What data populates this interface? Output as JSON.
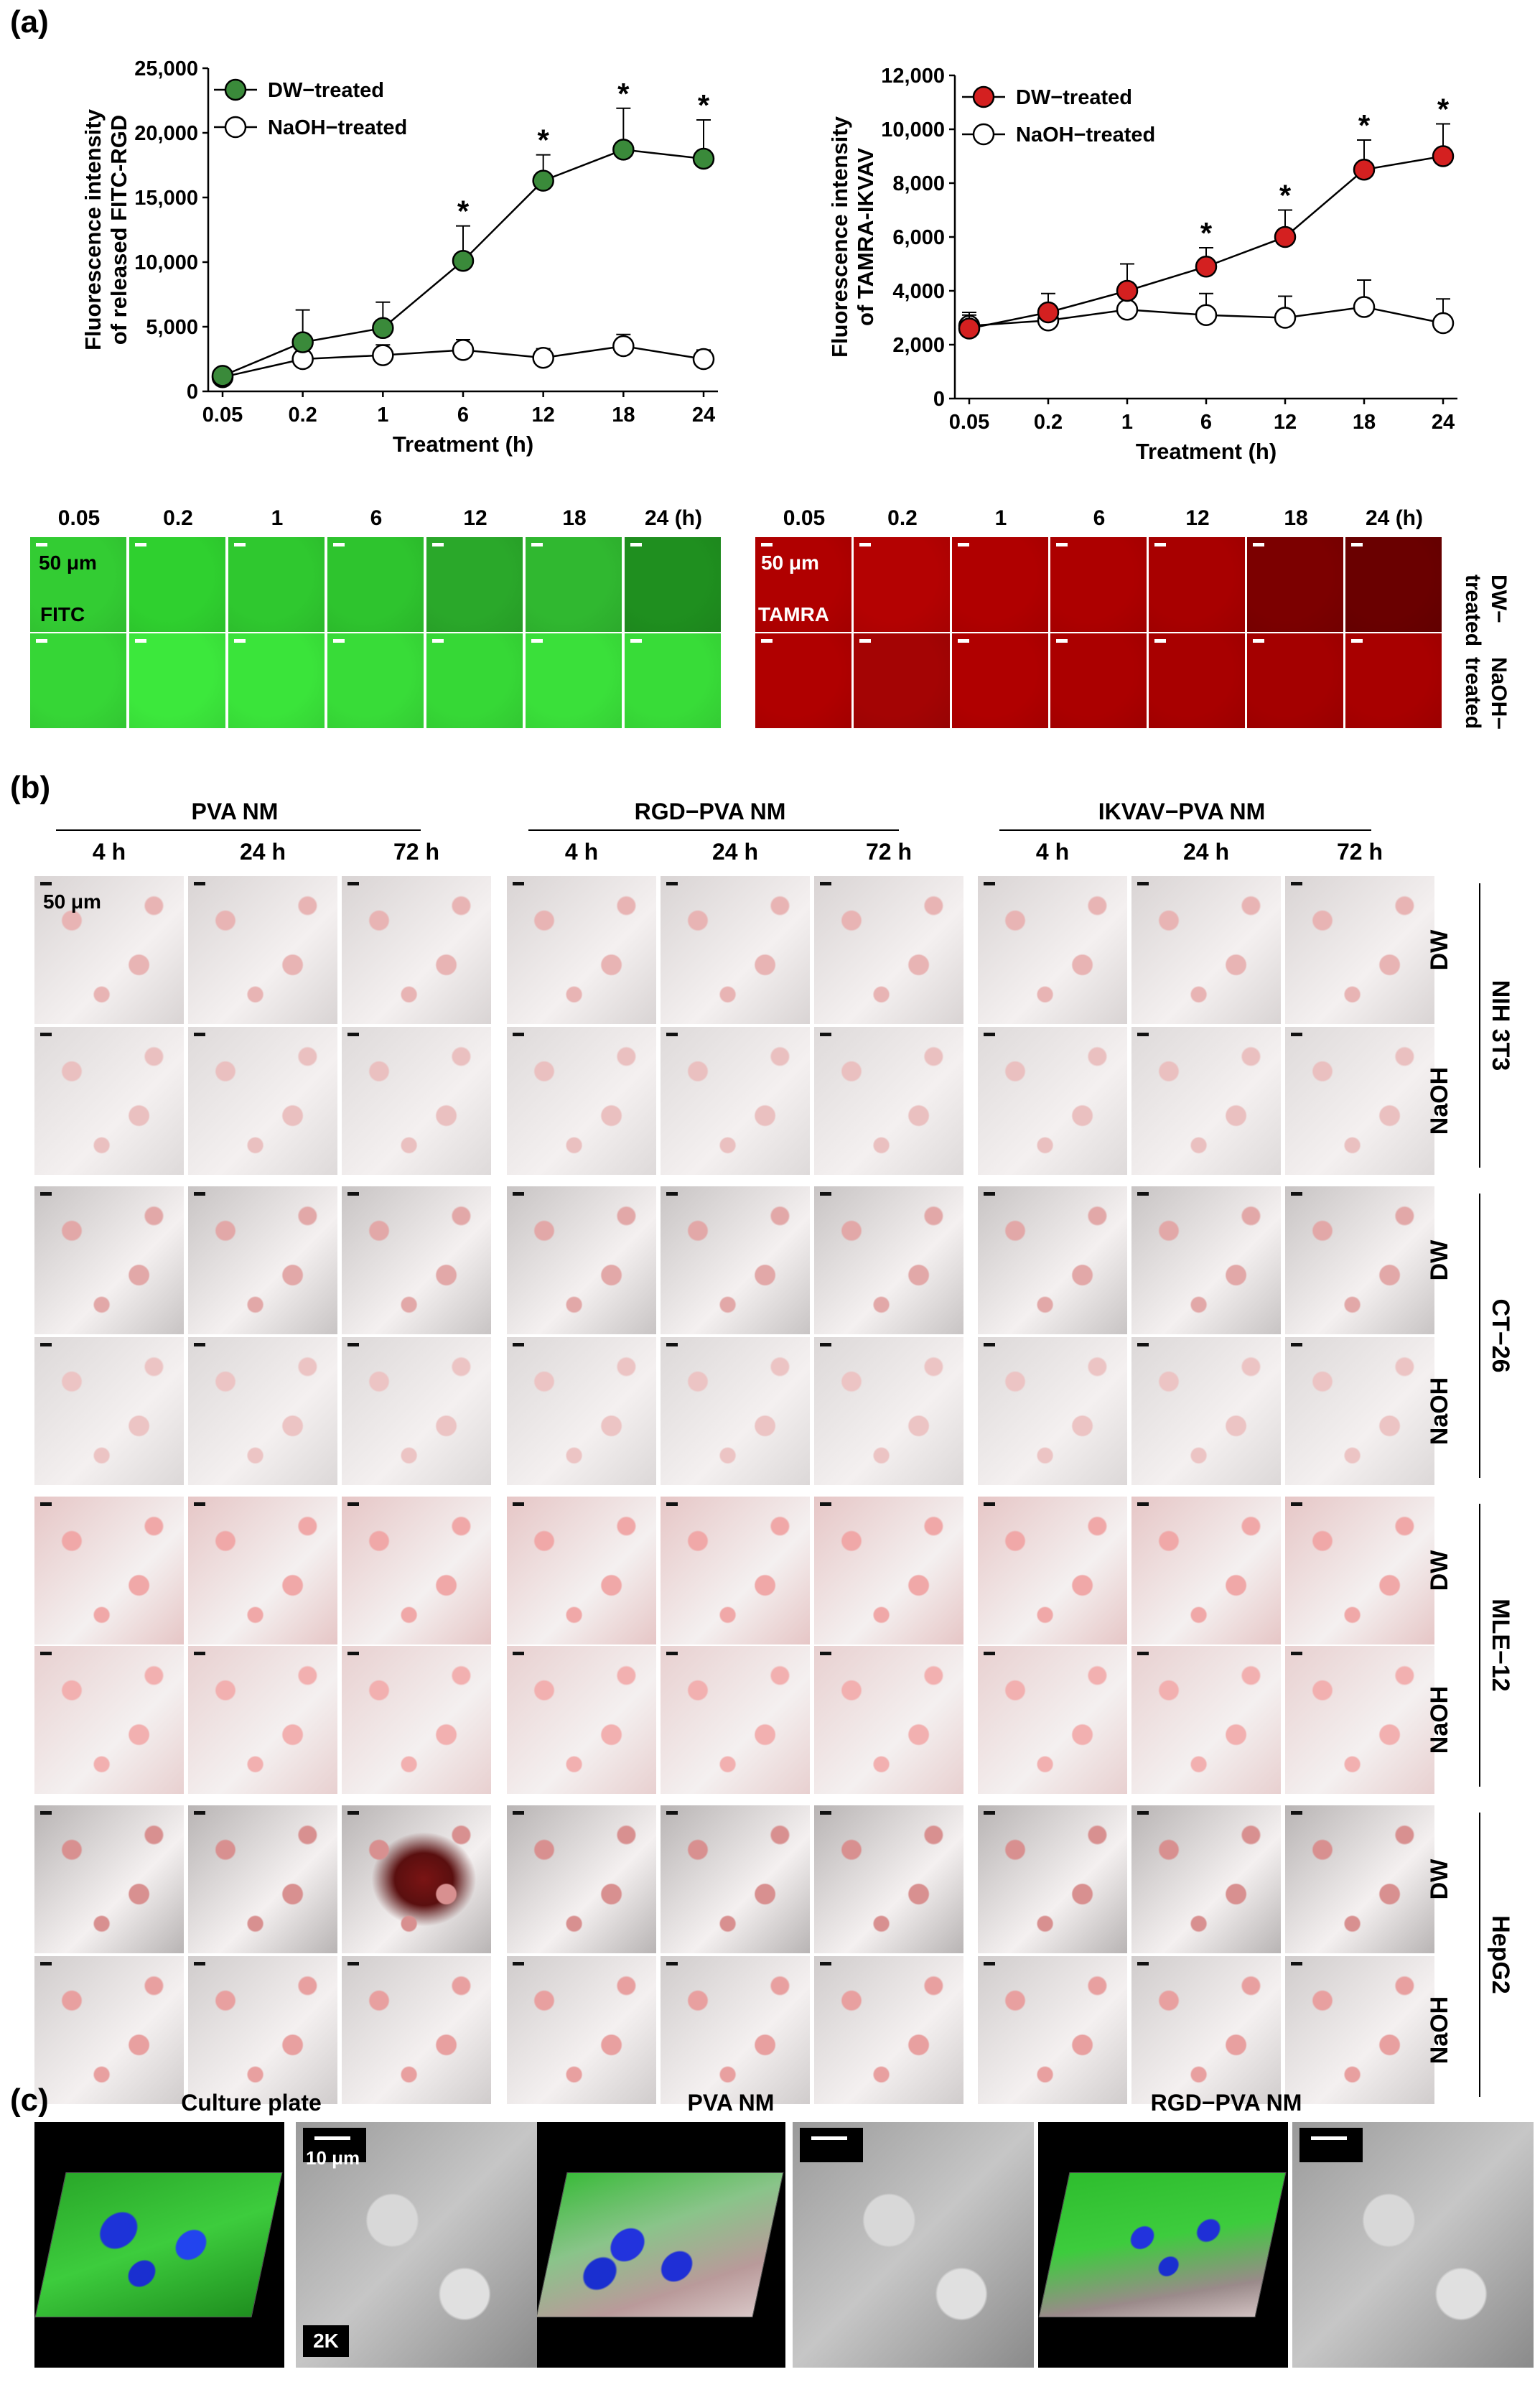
{
  "panels": {
    "a": "(a)",
    "b": "(b)",
    "c": "(c)"
  },
  "chart_data": [
    {
      "type": "line",
      "x": [
        "0.05",
        "0.2",
        "1",
        "6",
        "12",
        "18",
        "24"
      ],
      "xlabel": "Treatment (h)",
      "ylabel_line1": "Fluorescence intensity",
      "ylabel_line2": "of released FITC-RGD",
      "ylim": [
        0,
        25000
      ],
      "yticks": [
        "0",
        "5,000",
        "10,000",
        "15,000",
        "20,000",
        "25,000"
      ],
      "ytick_values": [
        0,
        5000,
        10000,
        15000,
        20000,
        25000
      ],
      "series": [
        {
          "name": "DW−treated",
          "color": "#3a8a3a",
          "values": [
            1200,
            3800,
            4900,
            10100,
            16300,
            18700,
            18000
          ],
          "errors": [
            400,
            2500,
            2000,
            2700,
            2000,
            3200,
            3000
          ]
        },
        {
          "name": "NaOH−treated",
          "color": "#ffffff",
          "values": [
            1100,
            2500,
            2800,
            3200,
            2600,
            3500,
            2500
          ],
          "errors": [
            300,
            600,
            800,
            800,
            700,
            900,
            700
          ]
        }
      ],
      "significance": [
        "",
        "",
        "",
        "*",
        "*",
        "*",
        "*"
      ]
    },
    {
      "type": "line",
      "x": [
        "0.05",
        "0.2",
        "1",
        "6",
        "12",
        "18",
        "24"
      ],
      "xlabel": "Treatment (h)",
      "ylabel_line1": "Fluorescence intensity",
      "ylabel_line2": "of TAMRA-IKVAV",
      "ylim": [
        0,
        12000
      ],
      "yticks": [
        "0",
        "2,000",
        "4,000",
        "6,000",
        "8,000",
        "10,000",
        "12,000"
      ],
      "ytick_values": [
        0,
        2000,
        4000,
        6000,
        8000,
        10000,
        12000
      ],
      "series": [
        {
          "name": "DW−treated",
          "color": "#d42020",
          "values": [
            2600,
            3200,
            4000,
            4900,
            6000,
            8500,
            9000
          ],
          "errors": [
            500,
            700,
            1000,
            700,
            1000,
            1100,
            1200
          ]
        },
        {
          "name": "NaOH−treated",
          "color": "#ffffff",
          "values": [
            2700,
            2900,
            3300,
            3100,
            3000,
            3400,
            2800
          ],
          "errors": [
            500,
            500,
            700,
            800,
            800,
            1000,
            900
          ]
        }
      ],
      "significance": [
        "",
        "",
        "",
        "*",
        "*",
        "*",
        "*"
      ]
    }
  ],
  "fluor_strip": {
    "times_green": [
      "0.05",
      "0.2",
      "1",
      "6",
      "12",
      "18",
      "24 (h)"
    ],
    "times_red": [
      "0.05",
      "0.2",
      "1",
      "6",
      "12",
      "18",
      "24 (h)"
    ],
    "scale_label_green": "50 μm",
    "scale_label_red": "50 μm",
    "green_tag": "FITC",
    "red_tag": "TAMRA",
    "row_labels": [
      "DW− treated",
      "NaOH− treated"
    ],
    "row1_line1": "DW−",
    "row1_line2": "treated",
    "row2_line1": "NaOH−",
    "row2_line2": "treated",
    "green_top": [
      "#33cc33",
      "#2fd02f",
      "#2fc82f",
      "#2ec42e",
      "#2aa82a",
      "#30b830",
      "#1f8f1f"
    ],
    "green_bottom": [
      "#36d636",
      "#3ce83c",
      "#3ae43a",
      "#38dc38",
      "#36d836",
      "#3ae03a",
      "#38dc38"
    ],
    "red_top": [
      "#b00000",
      "#b40202",
      "#b00000",
      "#ad0000",
      "#a80000",
      "#7c0000",
      "#6a0000"
    ],
    "red_bottom": [
      "#b00000",
      "#a40404",
      "#b00000",
      "#ab0000",
      "#a80000",
      "#a40000",
      "#a80000"
    ]
  },
  "panel_b": {
    "groups": [
      "PVA NM",
      "RGD−PVA NM",
      "IKVAV−PVA NM"
    ],
    "times": [
      "4 h",
      "24 h",
      "72 h"
    ],
    "scale_label": "50 μm",
    "rows": [
      "DW",
      "NaOH"
    ],
    "cell_lines": [
      "NIH 3T3",
      "CT−26",
      "MLE−12",
      "HepG2"
    ]
  },
  "panel_c": {
    "titles": [
      "Culture plate",
      "PVA NM",
      "RGD−PVA NM"
    ],
    "scale_label": "10 μm",
    "mag_label": "2K"
  }
}
